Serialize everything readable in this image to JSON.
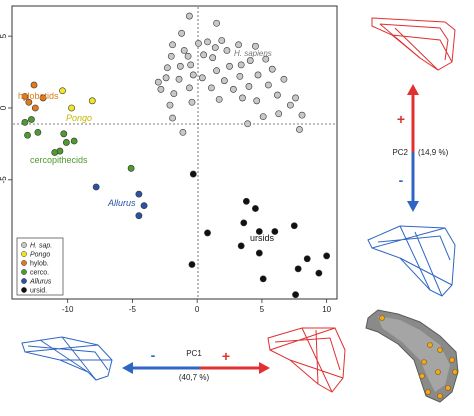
{
  "chart_data": {
    "type": "scatter",
    "title": "",
    "xlabel": "PC1",
    "xlabel_pct": "(40,7 %)",
    "ylabel": "PC2",
    "ylabel_pct": "(14,9 %)",
    "xlim": [
      -14.3,
      10.8
    ],
    "ylim": [
      -13.3,
      7.1
    ],
    "xticks": [
      -10,
      -5,
      0,
      5,
      10
    ],
    "yticks": [
      5,
      0,
      -5
    ],
    "xtick_labels": [
      "-10",
      "-5",
      "0",
      "5",
      "10"
    ],
    "ytick_labels": [
      "5",
      "0",
      "-5"
    ],
    "zero_lines": "dotted",
    "legend_position": "bottom-left",
    "axis_signs": {
      "positive": "+",
      "negative": "-"
    },
    "series": [
      {
        "name": "H. sap.",
        "annotation": "H. sapiens",
        "color": "#c8c8c8",
        "points": [
          [
            -0.6,
            6.4
          ],
          [
            1.5,
            5.9
          ],
          [
            -1.9,
            4.4
          ],
          [
            -1.2,
            5.2
          ],
          [
            -1.0,
            4.0
          ],
          [
            0.1,
            4.5
          ],
          [
            0.8,
            4.6
          ],
          [
            1.4,
            4.2
          ],
          [
            1.9,
            4.7
          ],
          [
            -2.0,
            3.6
          ],
          [
            -0.7,
            3.6
          ],
          [
            0.5,
            3.7
          ],
          [
            1.2,
            3.5
          ],
          [
            2.3,
            4.0
          ],
          [
            3.2,
            4.4
          ],
          [
            4.5,
            4.3
          ],
          [
            -2.3,
            2.8
          ],
          [
            -1.3,
            2.9
          ],
          [
            -0.5,
            3.0
          ],
          [
            1.5,
            2.6
          ],
          [
            2.5,
            2.9
          ],
          [
            3.4,
            3.0
          ],
          [
            4.1,
            3.3
          ],
          [
            5.3,
            3.4
          ],
          [
            -2.4,
            2.1
          ],
          [
            -1.4,
            2.0
          ],
          [
            -0.3,
            2.3
          ],
          [
            0.4,
            2.1
          ],
          [
            2.1,
            1.9
          ],
          [
            3.3,
            2.2
          ],
          [
            4.7,
            2.3
          ],
          [
            5.8,
            2.7
          ],
          [
            -2.8,
            1.3
          ],
          [
            -1.8,
            1.0
          ],
          [
            -0.6,
            1.4
          ],
          [
            1.1,
            1.4
          ],
          [
            2.8,
            1.3
          ],
          [
            4.0,
            1.5
          ],
          [
            5.5,
            1.6
          ],
          [
            6.7,
            2.0
          ],
          [
            -2.1,
            0.2
          ],
          [
            -0.4,
            0.4
          ],
          [
            1.7,
            0.6
          ],
          [
            3.5,
            0.7
          ],
          [
            4.6,
            0.5
          ],
          [
            6.2,
            0.9
          ],
          [
            -1.9,
            -0.7
          ],
          [
            5.1,
            -0.6
          ],
          [
            7.6,
            0.7
          ],
          [
            8.1,
            -0.5
          ],
          [
            -1.1,
            -1.7
          ],
          [
            3.9,
            -1.1
          ],
          [
            6.3,
            -0.4
          ],
          [
            7.2,
            0.2
          ],
          [
            -3.0,
            1.8
          ],
          [
            7.9,
            -1.5
          ]
        ]
      },
      {
        "name": "Pongo",
        "annotation": "Pongo",
        "color": "#f2e620",
        "points": [
          [
            -10.4,
            1.2
          ],
          [
            -9.7,
            0.0
          ],
          [
            -8.1,
            0.5
          ]
        ]
      },
      {
        "name": "hylob.",
        "annotation": "hylobatids",
        "color": "#e07a1a",
        "points": [
          [
            -13.3,
            0.8
          ],
          [
            -12.6,
            1.6
          ],
          [
            -11.9,
            0.7
          ],
          [
            -12.5,
            0.0
          ],
          [
            -13.0,
            0.4
          ]
        ]
      },
      {
        "name": "cerco.",
        "annotation": "cercopithecids",
        "color": "#4e9a2e",
        "points": [
          [
            -13.3,
            -1.0
          ],
          [
            -12.8,
            -0.8
          ],
          [
            -13.1,
            -1.9
          ],
          [
            -12.3,
            -1.7
          ],
          [
            -10.3,
            -1.8
          ],
          [
            -10.1,
            -2.4
          ],
          [
            -9.5,
            -2.3
          ],
          [
            -10.6,
            -3.0
          ],
          [
            -11.0,
            -3.1
          ],
          [
            -5.1,
            -4.2
          ]
        ]
      },
      {
        "name": "Allurus",
        "annotation": "Allurus",
        "color": "#2b52a8",
        "points": [
          [
            -7.8,
            -5.5
          ],
          [
            -4.5,
            -6.0
          ],
          [
            -4.1,
            -6.8
          ],
          [
            -4.5,
            -7.5
          ]
        ]
      },
      {
        "name": "ursid.",
        "annotation": "ursids",
        "color": "#111111",
        "points": [
          [
            -0.3,
            -4.6
          ],
          [
            3.8,
            -6.5
          ],
          [
            3.6,
            -8.0
          ],
          [
            4.5,
            -7.0
          ],
          [
            4.8,
            -8.6
          ],
          [
            6.0,
            -8.6
          ],
          [
            7.5,
            -8.2
          ],
          [
            0.8,
            -8.7
          ],
          [
            3.4,
            -9.6
          ],
          [
            4.8,
            -10.1
          ],
          [
            8.5,
            -10.5
          ],
          [
            10.0,
            -10.3
          ],
          [
            7.8,
            -11.2
          ],
          [
            9.4,
            -11.5
          ],
          [
            7.6,
            -13.0
          ],
          [
            -0.4,
            -10.9
          ],
          [
            5.1,
            -11.9
          ]
        ]
      }
    ]
  }
}
